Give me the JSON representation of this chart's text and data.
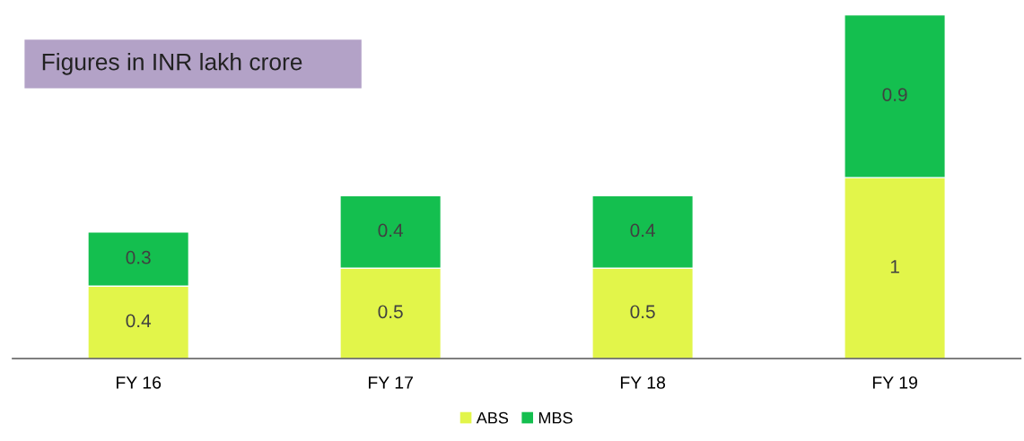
{
  "chart_data": {
    "type": "bar",
    "title": "Figures in INR lakh crore",
    "categories": [
      "FY 16",
      "FY 17",
      "FY 18",
      "FY 19"
    ],
    "stacked": true,
    "data_labels": true,
    "legend": "bottom",
    "grid": false,
    "series": [
      {
        "name": "ABS",
        "color": "#e2f54a",
        "values": [
          0.4,
          0.5,
          0.5,
          1
        ]
      },
      {
        "name": "MBS",
        "color": "#14bf4f",
        "values": [
          0.3,
          0.4,
          0.4,
          0.9
        ]
      }
    ]
  }
}
